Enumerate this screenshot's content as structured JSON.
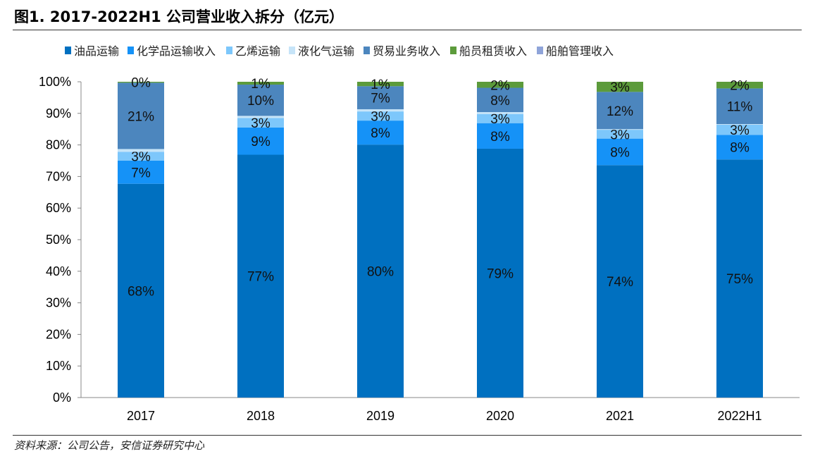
{
  "title": "图1. 2017-2022H1 公司营业收入拆分（亿元）",
  "source": "资料来源：公司公告，安信证券研究中心",
  "chart_data": {
    "type": "bar",
    "stacked": true,
    "percent": true,
    "title": "图1. 2017-2022H1 公司营业收入拆分（亿元）",
    "categories": [
      "2017",
      "2018",
      "2019",
      "2020",
      "2021",
      "2022H1"
    ],
    "ylim": [
      0,
      100
    ],
    "yticks": [
      "0%",
      "10%",
      "20%",
      "30%",
      "40%",
      "50%",
      "60%",
      "70%",
      "80%",
      "90%",
      "100%"
    ],
    "grid": false,
    "legend": "top",
    "series": [
      {
        "name": "油品运输",
        "color": "#0070C0",
        "values": [
          67.7,
          76.9,
          80.1,
          78.8,
          73.6,
          75.4
        ],
        "labels": [
          "68%",
          "77%",
          "80%",
          "79%",
          "74%",
          "75%"
        ]
      },
      {
        "name": "化学品运输收入",
        "color": "#1592F7",
        "values": [
          7.3,
          8.6,
          7.6,
          8.1,
          8.4,
          7.8
        ],
        "labels": [
          "7%",
          "9%",
          "8%",
          "8%",
          "8%",
          "8%"
        ]
      },
      {
        "name": "乙烯运输",
        "color": "#7DC7FB",
        "values": [
          2.8,
          3.0,
          2.9,
          2.9,
          2.8,
          3.2
        ],
        "labels": [
          "3%",
          "3%",
          "3%",
          "3%",
          "3%",
          "3%"
        ]
      },
      {
        "name": "液化气运输",
        "color": "#C6E4F8",
        "values": [
          0.9,
          0.7,
          0.7,
          0.6,
          0.2,
          0.2
        ],
        "labels": null
      },
      {
        "name": "贸易业务收入",
        "color": "#4C86BE",
        "values": [
          21.0,
          9.9,
          7.3,
          7.7,
          11.8,
          11.3
        ],
        "labels": [
          "21%",
          "10%",
          "7%",
          "8%",
          "12%",
          "11%"
        ]
      },
      {
        "name": "船员租赁收入",
        "color": "#5C9B3B",
        "values": [
          0.3,
          0.9,
          1.4,
          1.9,
          3.2,
          2.1
        ],
        "labels": [
          "0%",
          "1%",
          "1%",
          "2%",
          "3%",
          "2%"
        ]
      },
      {
        "name": "船舶管理收入",
        "color": "#8FA4D9",
        "values": [
          0,
          0,
          0,
          0,
          0,
          0
        ],
        "labels": null
      }
    ]
  }
}
